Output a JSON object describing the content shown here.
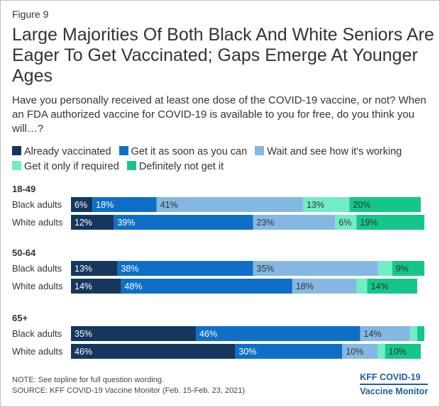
{
  "figure_label": "Figure 9",
  "title": "Large Majorities Of Both Black And White Seniors Are Eager To Get Vaccinated; Gaps Emerge At Younger Ages",
  "subtitle": "Have you personally received at least one dose of the COVID-19 vaccine, or not? When an FDA authorized vaccine for COVID-19 is available to you for free, do you think you will…?",
  "legend": [
    {
      "label": "Already vaccinated",
      "color": "#15375e"
    },
    {
      "label": "Get it as soon as you can",
      "color": "#0f6fc6"
    },
    {
      "label": "Wait and see how it's working",
      "color": "#84b8e2"
    },
    {
      "label": "Get it only if required",
      "color": "#72ebc7"
    },
    {
      "label": "Definitely not get it",
      "color": "#14c788"
    }
  ],
  "note": "NOTE: See topline for full question wording.",
  "source": "SOURCE: KFF COVID-19 Vaccine Monitor (Feb. 15-Feb. 23, 2021)",
  "brand": {
    "line1": "KFF COVID-19",
    "line2": "Vaccine Monitor"
  },
  "chart_data": {
    "type": "bar",
    "orientation": "horizontal",
    "stacked": true,
    "unit": "%",
    "series": [
      "Already vaccinated",
      "Get it as soon as you can",
      "Wait and see how it's working",
      "Get it only if required",
      "Definitely not get it"
    ],
    "colors": [
      "#15375e",
      "#0f6fc6",
      "#84b8e2",
      "#72ebc7",
      "#14c788"
    ],
    "label_colors": [
      "#ffffff",
      "#ffffff",
      "#333333",
      "#333333",
      "#333333"
    ],
    "groups": [
      {
        "name": "18-49",
        "rows": [
          {
            "label": "Black adults",
            "values": [
              6,
              18,
              41,
              13,
              20
            ],
            "labels": [
              "6%",
              "18%",
              "41%",
              "13%",
              "20%"
            ]
          },
          {
            "label": "White adults",
            "values": [
              12,
              39,
              23,
              6,
              19
            ],
            "labels": [
              "12%",
              "39%",
              "23%",
              "6%",
              "19%"
            ]
          }
        ]
      },
      {
        "name": "50-64",
        "rows": [
          {
            "label": "Black adults",
            "values": [
              13,
              38,
              35,
              4,
              9
            ],
            "labels": [
              "13%",
              "38%",
              "35%",
              "",
              "9%"
            ]
          },
          {
            "label": "White adults",
            "values": [
              14,
              48,
              18,
              3,
              14
            ],
            "labels": [
              "14%",
              "48%",
              "18%",
              "",
              "14%"
            ]
          }
        ]
      },
      {
        "name": "65+",
        "rows": [
          {
            "label": "Black adults",
            "values": [
              35,
              46,
              14,
              2,
              2
            ],
            "labels": [
              "35%",
              "46%",
              "14%",
              "",
              ""
            ]
          },
          {
            "label": "White adults",
            "values": [
              46,
              30,
              10,
              2,
              10
            ],
            "labels": [
              "46%",
              "30%",
              "10%",
              "",
              "10%"
            ]
          }
        ]
      }
    ]
  }
}
